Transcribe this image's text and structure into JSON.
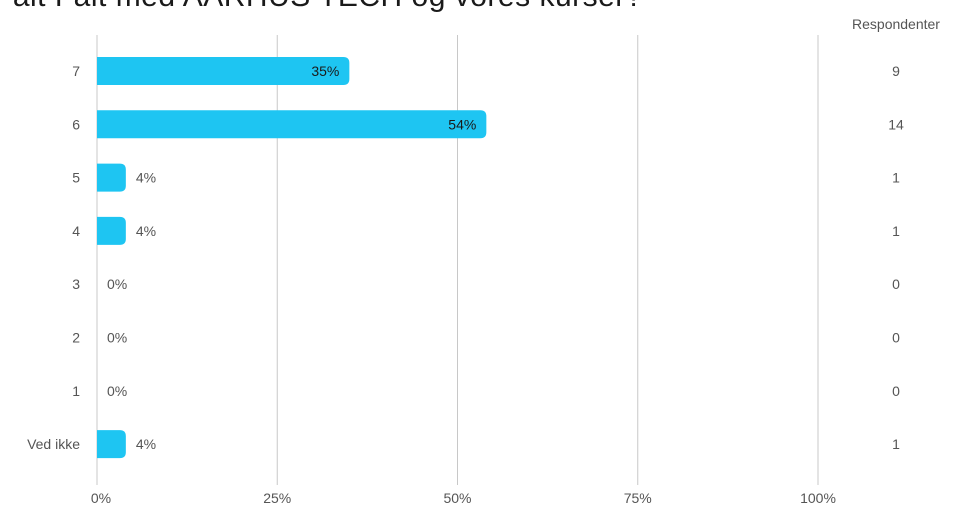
{
  "title": "Fait Fait med AARHUS TECH og vores kurser?",
  "chart_data": {
    "type": "bar",
    "orientation": "horizontal",
    "categories": [
      "7",
      "6",
      "5",
      "4",
      "3",
      "2",
      "1",
      "Ved ikke"
    ],
    "series": [
      {
        "values": [
          35,
          54,
          4,
          4,
          0,
          0,
          0,
          4
        ]
      }
    ],
    "value_labels": [
      "35%",
      "54%",
      "4%",
      "4%",
      "0%",
      "0%",
      "0%",
      "4%"
    ],
    "respondents_header": "Respondenter",
    "respondents": [
      9,
      14,
      1,
      1,
      0,
      0,
      0,
      1
    ],
    "xlim": [
      0,
      100
    ],
    "x_ticks": [
      "0%",
      "25%",
      "50%",
      "75%",
      "100%"
    ],
    "grid": true,
    "bar_color": "#1ec5f2",
    "grid_color": "#c8c8c8",
    "label_color": "#555555"
  }
}
